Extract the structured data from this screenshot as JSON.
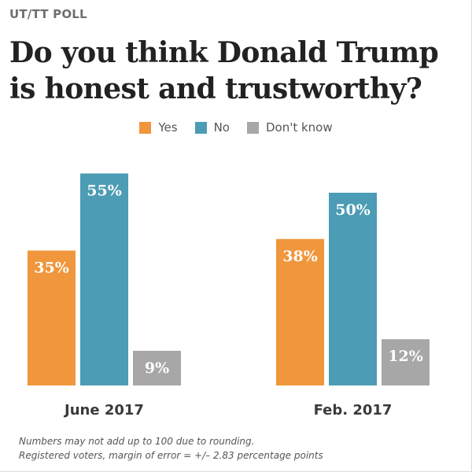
{
  "kicker": "UT/TT POLL",
  "title": "Do you think Donald Trump is honest and trustworthy?",
  "notes": [
    "Numbers may not add up to 100 due to rounding.",
    "Registered voters, margin of error = +/– 2.83 percentage points"
  ],
  "legend": [
    {
      "label": "Yes",
      "color": "#f0963c"
    },
    {
      "label": "No",
      "color": "#4b9cb4"
    },
    {
      "label": "Don't know",
      "color": "#a7a7a7"
    }
  ],
  "chart_data": {
    "type": "bar",
    "categories": [
      "June 2017",
      "Feb. 2017"
    ],
    "series": [
      {
        "name": "Yes",
        "color": "#f0963c",
        "values": [
          35,
          38
        ]
      },
      {
        "name": "No",
        "color": "#4b9cb4",
        "values": [
          55,
          50
        ]
      },
      {
        "name": "Don't know",
        "color": "#a7a7a7",
        "values": [
          9,
          12
        ]
      }
    ],
    "value_suffix": "%",
    "title": "Do you think Donald Trump is honest and trustworthy?",
    "xlabel": "",
    "ylabel": "",
    "grid": false,
    "legend_position": "top-center"
  }
}
